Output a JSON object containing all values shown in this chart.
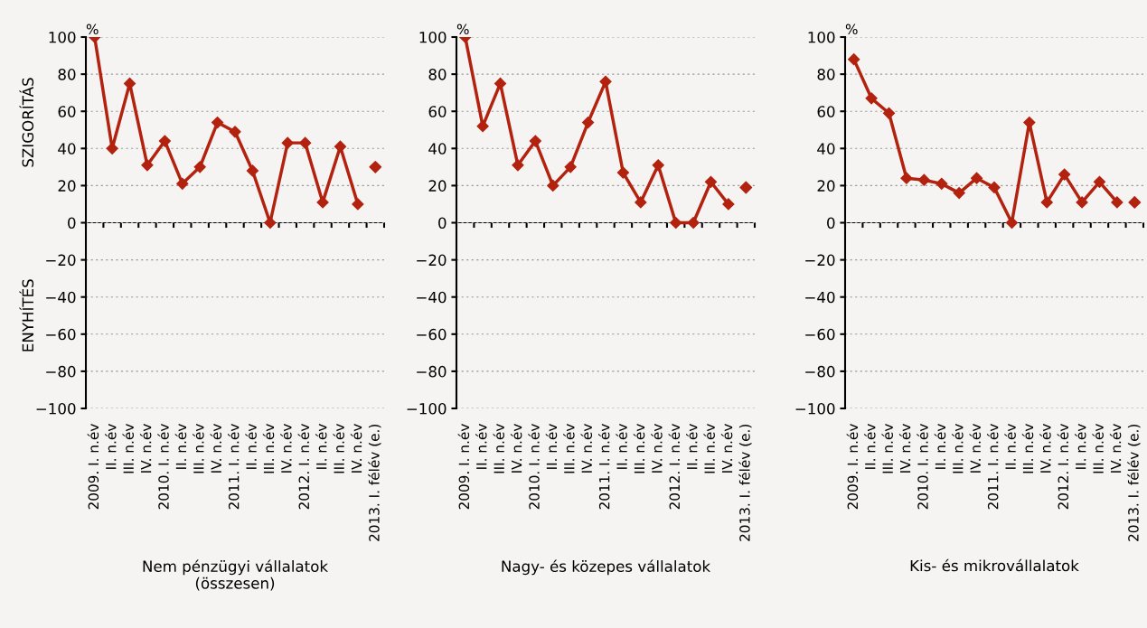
{
  "chart_data": [
    {
      "type": "line",
      "ylabel": "%",
      "xlabel": "Nem pénzügyi vállalatok\n(összesen)",
      "annotations": [
        "SZIGORÍTÁS",
        "ENYHÍTÉS"
      ],
      "categories": [
        "2009. I. n.év",
        "II. n.év",
        "III. n.év",
        "IV. n.év",
        "2010. I. n.év",
        "II. n.év",
        "III. n.év",
        "IV. n.év",
        "2011. I. n.év",
        "II. n.év",
        "III. n.év",
        "IV. n.év",
        "2012. I. n.év",
        "II. n.év",
        "III. n.év",
        "IV. n.év",
        "2013. I. félév (e.)"
      ],
      "series": [
        {
          "color": "#b3220f",
          "values": [
            100,
            40,
            75,
            31,
            44,
            21,
            30,
            54,
            49,
            28,
            0,
            43,
            43,
            11,
            41,
            10,
            null
          ]
        },
        {
          "type": "scatter",
          "color": "#b3220f",
          "values": [
            null,
            null,
            null,
            null,
            null,
            null,
            null,
            null,
            null,
            null,
            null,
            null,
            null,
            null,
            null,
            null,
            30
          ]
        }
      ],
      "ylim": [
        -100,
        100
      ],
      "yticks": [
        {
          "value": -100,
          "label": "−100"
        },
        {
          "value": -80,
          "label": "−80"
        },
        {
          "value": -60,
          "label": "−60"
        },
        {
          "value": -40,
          "label": "−40"
        },
        {
          "value": -20,
          "label": "−20"
        },
        0,
        20,
        40,
        60,
        80,
        100
      ],
      "grid": "y",
      "marker": "diamond",
      "legend": false
    },
    {
      "type": "line",
      "ylabel": "%",
      "xlabel": "Nagy- és közepes vállalatok",
      "categories": [
        "2009. I. n.év",
        "II. n.év",
        "III. n.év",
        "IV. n.év",
        "2010. I. n.év",
        "II. n.év",
        "III. n.év",
        "IV. n.év",
        "2011. I. n.év",
        "II. n.év",
        "III. n.év",
        "IV. n.év",
        "2012. I. n.év",
        "II. n.év",
        "III. n.év",
        "IV. n.év",
        "2013. I. félév (e.)"
      ],
      "series": [
        {
          "color": "#b3220f",
          "values": [
            100,
            52,
            75,
            31,
            44,
            20,
            30,
            54,
            76,
            27,
            11,
            31,
            0,
            0,
            22,
            10,
            null
          ]
        },
        {
          "type": "scatter",
          "color": "#b3220f",
          "values": [
            null,
            null,
            null,
            null,
            null,
            null,
            null,
            null,
            null,
            null,
            null,
            null,
            null,
            null,
            null,
            null,
            19
          ]
        }
      ],
      "ylim": [
        -100,
        100
      ],
      "yticks": [
        {
          "value": -100,
          "label": "−100"
        },
        {
          "value": -80,
          "label": "−80"
        },
        {
          "value": -60,
          "label": "−60"
        },
        {
          "value": -40,
          "label": "−40"
        },
        {
          "value": -20,
          "label": "−20"
        },
        0,
        20,
        40,
        60,
        80,
        100
      ],
      "grid": "y",
      "marker": "diamond",
      "legend": false
    },
    {
      "type": "line",
      "ylabel": "%",
      "xlabel": "Kis- és mikrovállalatok",
      "categories": [
        "2009. I. n.év",
        "II. n.év",
        "III. n.év",
        "IV. n.év",
        "2010. I. n.év",
        "II. n.év",
        "III. n.év",
        "IV. n.év",
        "2011. I. n.év",
        "II. n.év",
        "III. n.év",
        "IV. n.év",
        "2012. I. n.év",
        "II. n.év",
        "III. n.év",
        "IV. n.év",
        "2013. I. félév (e.)"
      ],
      "series": [
        {
          "color": "#b3220f",
          "values": [
            88,
            67,
            59,
            24,
            23,
            21,
            16,
            24,
            19,
            0,
            54,
            11,
            26,
            11,
            22,
            11,
            null
          ]
        },
        {
          "type": "scatter",
          "color": "#b3220f",
          "values": [
            null,
            null,
            null,
            null,
            null,
            null,
            null,
            null,
            null,
            null,
            null,
            null,
            null,
            null,
            null,
            null,
            11
          ]
        }
      ],
      "ylim": [
        -100,
        100
      ],
      "yticks": [
        {
          "value": -100,
          "label": "−100"
        },
        {
          "value": -80,
          "label": "−80"
        },
        {
          "value": -60,
          "label": "−60"
        },
        {
          "value": -40,
          "label": "−40"
        },
        {
          "value": -20,
          "label": "−20"
        },
        0,
        20,
        40,
        60,
        80,
        100
      ],
      "grid": "y",
      "marker": "diamond",
      "legend": false
    }
  ]
}
